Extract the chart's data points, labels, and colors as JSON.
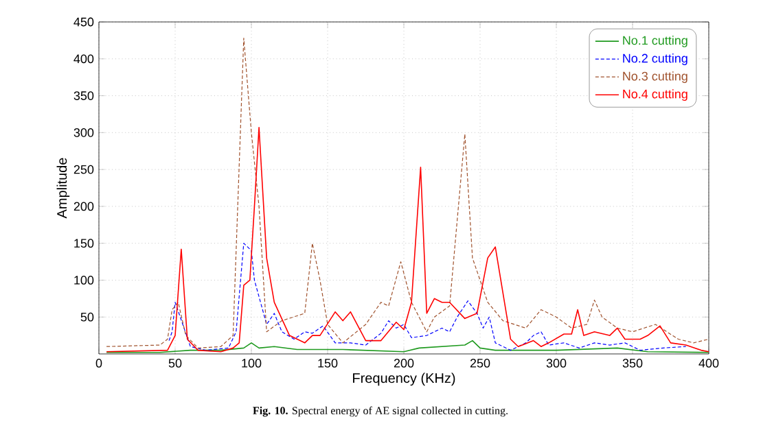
{
  "chart_data": {
    "type": "line",
    "xlabel": "Frequency (KHz)",
    "ylabel": "Amplitude",
    "annotations": [
      "**Fig. 10.** Spectral energy of AE signal collected in cutting."
    ],
    "xlim": [
      0,
      400
    ],
    "xticks": [
      0,
      50,
      100,
      150,
      200,
      250,
      300,
      350,
      400
    ],
    "ylim": [
      0,
      450
    ],
    "yticks": [
      50,
      100,
      150,
      200,
      250,
      300,
      350,
      400,
      450
    ],
    "grid": true,
    "legend": "top right",
    "series": [
      {
        "name": "No.1 cutting",
        "color": "#1f9a1f",
        "line_style": "solid",
        "x": [
          5,
          40,
          60,
          80,
          95,
          100,
          105,
          115,
          130,
          160,
          200,
          210,
          240,
          245,
          250,
          260,
          300,
          340,
          360,
          400
        ],
        "values": [
          2,
          2,
          5,
          5,
          8,
          15,
          8,
          10,
          6,
          6,
          3,
          8,
          12,
          18,
          8,
          5,
          5,
          8,
          3,
          2
        ]
      },
      {
        "name": "No.2 cutting",
        "color": "#0000ff",
        "line_style": "dashed",
        "x": [
          46,
          48,
          50,
          55,
          60,
          70,
          85,
          90,
          95,
          100,
          102,
          110,
          115,
          120,
          128,
          135,
          140,
          147,
          155,
          165,
          175,
          185,
          190,
          195,
          200,
          205,
          215,
          225,
          230,
          235,
          242,
          248,
          252,
          256,
          260,
          270,
          280,
          285,
          290,
          295,
          305,
          315,
          325,
          335,
          345,
          355,
          370,
          385
        ],
        "values": [
          18,
          30,
          70,
          40,
          10,
          5,
          8,
          30,
          150,
          140,
          100,
          40,
          55,
          30,
          20,
          30,
          28,
          38,
          15,
          15,
          12,
          28,
          45,
          35,
          40,
          22,
          25,
          35,
          30,
          50,
          72,
          55,
          35,
          50,
          15,
          5,
          15,
          25,
          30,
          12,
          15,
          8,
          15,
          12,
          15,
          5,
          8,
          10
        ]
      },
      {
        "name": "No.3 cutting",
        "color": "#a0522d",
        "line_style": "dashed",
        "x": [
          5,
          40,
          45,
          48,
          52,
          57,
          65,
          80,
          88,
          95,
          100,
          105,
          110,
          120,
          135,
          140,
          145,
          150,
          160,
          175,
          185,
          190,
          198,
          205,
          215,
          220,
          230,
          240,
          245,
          255,
          265,
          280,
          290,
          300,
          310,
          320,
          325,
          330,
          340,
          350,
          365,
          380,
          390,
          400
        ],
        "values": [
          10,
          12,
          20,
          60,
          70,
          25,
          8,
          10,
          25,
          428,
          300,
          200,
          30,
          45,
          55,
          150,
          100,
          40,
          15,
          40,
          70,
          65,
          125,
          70,
          30,
          50,
          65,
          298,
          130,
          70,
          45,
          35,
          60,
          50,
          35,
          40,
          73,
          50,
          35,
          30,
          40,
          20,
          15,
          20
        ]
      },
      {
        "name": "No.4 cutting",
        "color": "#ff0000",
        "line_style": "solid",
        "x": [
          5,
          45,
          50,
          54,
          58,
          65,
          80,
          88,
          92,
          95,
          99,
          102,
          105,
          110,
          115,
          125,
          135,
          140,
          145,
          155,
          160,
          165,
          175,
          185,
          195,
          200,
          205,
          211,
          215,
          220,
          225,
          230,
          240,
          248,
          255,
          260,
          270,
          275,
          285,
          290,
          295,
          305,
          310,
          314,
          318,
          325,
          335,
          340,
          345,
          355,
          360,
          368,
          375,
          385,
          395,
          400
        ],
        "values": [
          3,
          5,
          25,
          142,
          20,
          5,
          3,
          8,
          15,
          93,
          100,
          200,
          307,
          130,
          70,
          25,
          15,
          25,
          25,
          57,
          45,
          57,
          18,
          18,
          43,
          33,
          70,
          253,
          55,
          75,
          70,
          70,
          48,
          55,
          130,
          145,
          20,
          10,
          18,
          10,
          15,
          27,
          27,
          60,
          25,
          30,
          25,
          35,
          20,
          20,
          25,
          38,
          15,
          12,
          5,
          3
        ]
      }
    ]
  }
}
